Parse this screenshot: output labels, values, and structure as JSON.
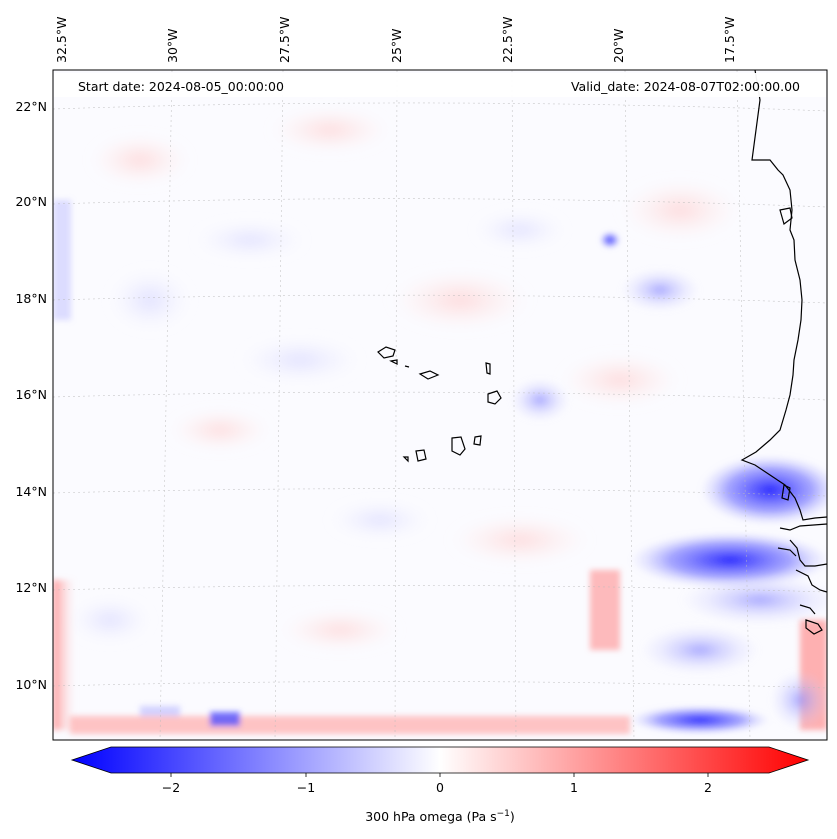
{
  "header": {
    "start_date": "Start date: 2024-08-05_00:00:00",
    "valid_date": "Valid_date: 2024-08-07T02:00:00.00"
  },
  "map": {
    "lon_labels": [
      "32.5°W",
      "30°W",
      "27.5°W",
      "25°W",
      "22.5°W",
      "20°W",
      "17.5°W"
    ],
    "lat_labels": [
      "22°N",
      "20°N",
      "18°N",
      "16°N",
      "14°N",
      "12°N",
      "10°N"
    ],
    "features": [
      "cape-verde-islands",
      "west-africa-coastline"
    ]
  },
  "colorbar": {
    "ticks": [
      "−2",
      "−1",
      "0",
      "1",
      "2"
    ],
    "label": "300 hPa omega (Pa s",
    "label_sup": "−1",
    "label_end": ")",
    "colormap": "bwr",
    "min": -2.5,
    "max": 2.5,
    "color_low": "#0000ff",
    "color_mid": "#ffffff",
    "color_high": "#ff0000"
  }
}
